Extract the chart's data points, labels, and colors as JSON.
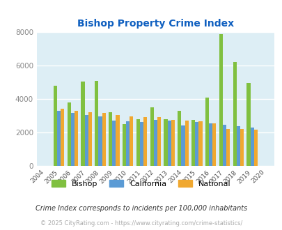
{
  "title": "Bishop Property Crime Index",
  "years": [
    2004,
    2005,
    2006,
    2007,
    2008,
    2009,
    2010,
    2011,
    2012,
    2013,
    2014,
    2015,
    2016,
    2017,
    2018,
    2019,
    2020
  ],
  "bishop": [
    null,
    4800,
    3800,
    5050,
    5100,
    3200,
    2500,
    2800,
    3500,
    2800,
    3300,
    2750,
    4100,
    7900,
    6200,
    4950,
    null
  ],
  "california": [
    null,
    3300,
    3150,
    3050,
    2950,
    2700,
    2650,
    2600,
    2750,
    2700,
    2400,
    2600,
    2550,
    2450,
    2350,
    2300,
    null
  ],
  "national": [
    null,
    3400,
    3300,
    3200,
    3150,
    3050,
    2950,
    2900,
    2900,
    2750,
    2700,
    2650,
    2550,
    2200,
    2200,
    2150,
    null
  ],
  "bishop_color": "#80c040",
  "california_color": "#5b9bd5",
  "national_color": "#f0a830",
  "bg_color": "#ddeef5",
  "ylim": [
    0,
    8000
  ],
  "yticks": [
    0,
    2000,
    4000,
    6000,
    8000
  ],
  "footnote1": "Crime Index corresponds to incidents per 100,000 inhabitants",
  "footnote2": "© 2025 CityRating.com - https://www.cityrating.com/crime-statistics/",
  "legend_labels": [
    "Bishop",
    "California",
    "National"
  ],
  "title_color": "#1060c0",
  "footnote1_color": "#333333",
  "footnote2_color": "#aaaaaa"
}
